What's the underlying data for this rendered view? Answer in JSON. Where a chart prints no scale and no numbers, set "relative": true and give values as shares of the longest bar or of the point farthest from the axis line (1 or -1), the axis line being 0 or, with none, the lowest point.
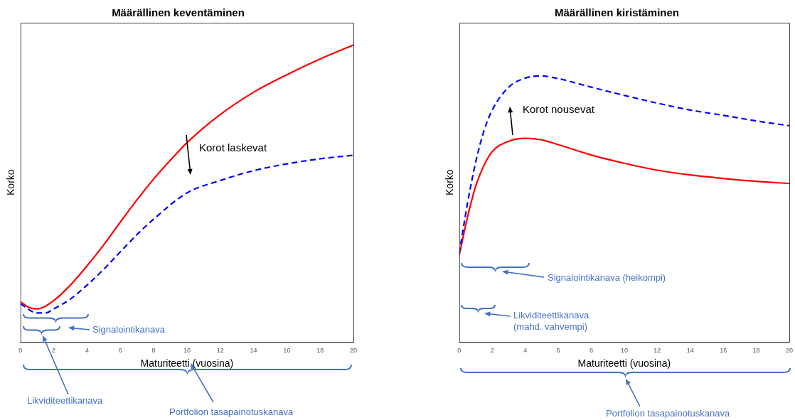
{
  "chart_data": [
    {
      "type": "line",
      "title": "Määrällinen keventäminen",
      "xlabel": "Maturiteetti (vuosina)",
      "ylabel": "Korko",
      "relative": true,
      "xlim": [
        0,
        20
      ],
      "xticks": [
        0,
        2,
        4,
        6,
        8,
        10,
        12,
        14,
        16,
        18,
        20
      ],
      "marker": "none",
      "grid": false,
      "legend": false,
      "tick_labels": "x",
      "x": [
        0,
        0.5,
        1,
        2,
        3,
        4,
        5,
        6,
        7,
        8,
        9,
        10,
        12,
        14,
        16,
        18,
        20
      ],
      "series": [
        {
          "color": "#ff0000",
          "line_style": "solid",
          "values": [
            0.136,
            0.117,
            0.112,
            0.14,
            0.192,
            0.257,
            0.327,
            0.404,
            0.479,
            0.549,
            0.612,
            0.671,
            0.766,
            0.841,
            0.9,
            0.953,
            1
          ]
        },
        {
          "color": "#0000ff",
          "line_style": "dashed",
          "x": [
            0,
            1,
            1.5,
            2,
            3,
            4,
            5,
            6,
            7,
            8,
            10,
            12,
            14,
            16,
            18,
            20
          ],
          "values": [
            0.129,
            0.098,
            0.098,
            0.112,
            0.145,
            0.192,
            0.245,
            0.304,
            0.362,
            0.414,
            0.502,
            0.544,
            0.577,
            0.6,
            0.617,
            0.629
          ]
        }
      ],
      "annotations": [
        "Korot laskevat",
        "Signalointikanava",
        "Likviditeettikanava",
        "Portfolion tasapainotuskanava"
      ]
    },
    {
      "type": "line",
      "title": "Määrällinen kiristäminen",
      "xlabel": "Maturiteetti (vuosina)",
      "ylabel": "Korko",
      "relative": true,
      "xlim": [
        0,
        20
      ],
      "xticks": [
        0,
        2,
        4,
        6,
        8,
        10,
        12,
        14,
        16,
        18,
        20
      ],
      "marker": "none",
      "grid": false,
      "legend": false,
      "tick_labels": "x",
      "x": [
        0,
        0.5,
        1,
        1.5,
        2,
        3,
        4,
        5,
        6,
        8,
        10,
        12,
        14,
        16,
        18,
        20
      ],
      "series": [
        {
          "color": "#0000ff",
          "line_style": "dashed",
          "values": [
            0.333,
            0.521,
            0.677,
            0.794,
            0.872,
            0.958,
            0.992,
            1,
            0.99,
            0.958,
            0.927,
            0.898,
            0.872,
            0.852,
            0.831,
            0.813
          ]
        },
        {
          "color": "#ff0000",
          "line_style": "solid",
          "values": [
            0.326,
            0.469,
            0.586,
            0.664,
            0.716,
            0.755,
            0.766,
            0.76,
            0.742,
            0.703,
            0.672,
            0.646,
            0.628,
            0.615,
            0.604,
            0.596
          ]
        }
      ],
      "annotations": [
        "Korot nousevat",
        "Signalointikanava (heikompi)",
        "Likviditeettikanava\n(mahd. vahvempi)",
        "Portfolion tasapainotuskanava"
      ]
    }
  ]
}
